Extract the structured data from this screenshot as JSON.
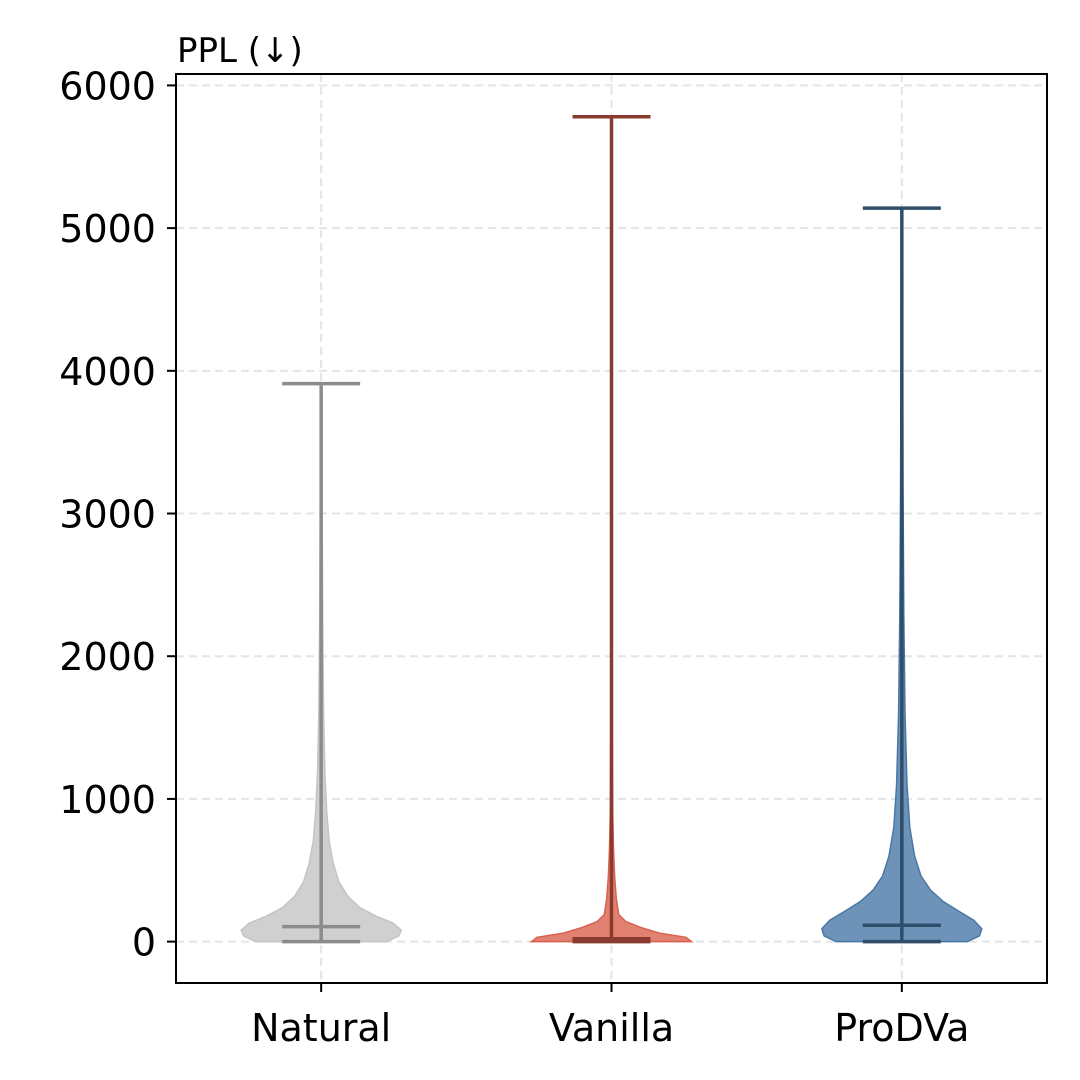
{
  "chart_data": {
    "type": "violin",
    "ylabel": "PPL (↓)",
    "categories": [
      "Natural",
      "Vanilla",
      "ProDVa"
    ],
    "ylim": [
      -290,
      6080
    ],
    "yticks": [
      0,
      1000,
      2000,
      3000,
      4000,
      5000,
      6000
    ],
    "grid": true,
    "series": [
      {
        "name": "Natural",
        "min": 0,
        "median": 105,
        "max": 3910,
        "fill_color": "#c4c4c4",
        "line_color": "#8c8c8c",
        "density": [
          [
            0,
            0.82
          ],
          [
            40,
            0.97
          ],
          [
            80,
            1.0
          ],
          [
            130,
            0.9
          ],
          [
            180,
            0.68
          ],
          [
            240,
            0.48
          ],
          [
            320,
            0.33
          ],
          [
            420,
            0.22
          ],
          [
            550,
            0.15
          ],
          [
            700,
            0.1
          ],
          [
            900,
            0.07
          ],
          [
            1200,
            0.045
          ],
          [
            1600,
            0.03
          ],
          [
            2200,
            0.02
          ],
          [
            3000,
            0.012
          ],
          [
            3910,
            0.008
          ]
        ]
      },
      {
        "name": "Vanilla",
        "min": 0,
        "median": 20,
        "max": 5780,
        "fill_color": "#d9614f",
        "line_color": "#8b3a2f",
        "density": [
          [
            0,
            1.0
          ],
          [
            30,
            0.93
          ],
          [
            60,
            0.6
          ],
          [
            100,
            0.36
          ],
          [
            140,
            0.18
          ],
          [
            190,
            0.09
          ],
          [
            300,
            0.06
          ],
          [
            450,
            0.04
          ],
          [
            650,
            0.025
          ],
          [
            900,
            0.015
          ],
          [
            1400,
            0.01
          ],
          [
            2500,
            0.006
          ],
          [
            4000,
            0.004
          ],
          [
            5780,
            0.003
          ]
        ]
      },
      {
        "name": "ProDVa",
        "min": 0,
        "median": 115,
        "max": 5140,
        "fill_color": "#4a78a6",
        "line_color": "#2e4e6b",
        "density": [
          [
            0,
            0.82
          ],
          [
            40,
            0.97
          ],
          [
            90,
            1.0
          ],
          [
            150,
            0.9
          ],
          [
            210,
            0.72
          ],
          [
            280,
            0.52
          ],
          [
            360,
            0.36
          ],
          [
            460,
            0.24
          ],
          [
            600,
            0.16
          ],
          [
            800,
            0.1
          ],
          [
            1100,
            0.065
          ],
          [
            1600,
            0.04
          ],
          [
            2300,
            0.025
          ],
          [
            3200,
            0.015
          ],
          [
            4200,
            0.01
          ],
          [
            5140,
            0.007
          ]
        ]
      }
    ]
  }
}
